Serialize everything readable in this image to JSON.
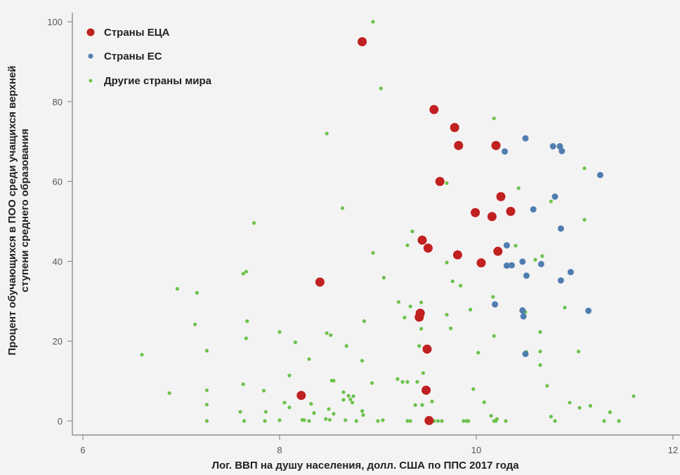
{
  "chart_data": {
    "type": "scatter",
    "title": "",
    "xlabel": "Лог. ВВП на душу населения, долл. США по ППС 2017 года",
    "ylabel_lines": [
      "Процент обучающихся в ПОО среди учащихся верхней",
      "ступени среднего образования"
    ],
    "xlim": [
      6,
      12
    ],
    "ylim": [
      0,
      100
    ],
    "x_ticks": [
      "6",
      "8",
      "10",
      "12"
    ],
    "y_ticks": [
      "0",
      "20",
      "40",
      "60",
      "80",
      "100"
    ],
    "grid": false,
    "legend_position": "top-left",
    "series": [
      {
        "name": "Страны ЕЦА",
        "color": "#c0201f",
        "points": [
          [
            8.84,
            95.0
          ],
          [
            9.57,
            78.0
          ],
          [
            9.78,
            73.5
          ],
          [
            9.82,
            69.0
          ],
          [
            10.2,
            69.0
          ],
          [
            9.63,
            60.0
          ],
          [
            10.25,
            56.2
          ],
          [
            9.99,
            52.2
          ],
          [
            10.16,
            51.2
          ],
          [
            10.35,
            52.5
          ],
          [
            9.45,
            45.3
          ],
          [
            9.51,
            43.3
          ],
          [
            9.81,
            41.6
          ],
          [
            10.22,
            42.5
          ],
          [
            10.05,
            39.6
          ],
          [
            8.41,
            34.8
          ],
          [
            9.43,
            27.0
          ],
          [
            9.42,
            26.0
          ],
          [
            9.5,
            18.0
          ],
          [
            8.22,
            6.4
          ],
          [
            9.49,
            7.7
          ],
          [
            9.52,
            0.1
          ]
        ]
      },
      {
        "name": "Страны ЕС",
        "color": "#4f7db0",
        "points": [
          [
            10.5,
            70.8
          ],
          [
            10.78,
            68.8
          ],
          [
            10.85,
            68.8
          ],
          [
            10.87,
            67.6
          ],
          [
            10.29,
            67.5
          ],
          [
            11.26,
            61.6
          ],
          [
            10.8,
            56.2
          ],
          [
            10.58,
            53.0
          ],
          [
            10.86,
            48.2
          ],
          [
            10.31,
            44.0
          ],
          [
            10.47,
            39.9
          ],
          [
            10.31,
            38.9
          ],
          [
            10.36,
            39.0
          ],
          [
            10.66,
            39.3
          ],
          [
            10.96,
            37.3
          ],
          [
            10.51,
            36.4
          ],
          [
            10.86,
            35.2
          ],
          [
            10.19,
            29.2
          ],
          [
            10.47,
            27.7
          ],
          [
            10.48,
            26.2
          ],
          [
            11.14,
            27.6
          ],
          [
            10.5,
            16.8
          ]
        ]
      },
      {
        "name": "Другие страны мира",
        "color": "#6cc24a",
        "points": [
          [
            8.95,
            100.0
          ],
          [
            9.03,
            83.3
          ],
          [
            10.18,
            75.8
          ],
          [
            8.48,
            72.0
          ],
          [
            11.1,
            63.3
          ],
          [
            9.7,
            59.6
          ],
          [
            10.43,
            58.3
          ],
          [
            8.64,
            53.3
          ],
          [
            10.76,
            55.0
          ],
          [
            11.1,
            50.4
          ],
          [
            7.74,
            49.6
          ],
          [
            9.35,
            47.5
          ],
          [
            10.4,
            43.9
          ],
          [
            8.95,
            42.1
          ],
          [
            9.3,
            44.0
          ],
          [
            10.6,
            40.4
          ],
          [
            10.67,
            41.3
          ],
          [
            9.06,
            35.9
          ],
          [
            9.7,
            39.7
          ],
          [
            9.76,
            35.0
          ],
          [
            9.84,
            33.9
          ],
          [
            7.66,
            37.4
          ],
          [
            7.63,
            36.9
          ],
          [
            6.96,
            33.1
          ],
          [
            7.16,
            32.1
          ],
          [
            10.66,
            39.3
          ],
          [
            9.33,
            28.7
          ],
          [
            9.44,
            29.7
          ],
          [
            9.21,
            29.8
          ],
          [
            9.94,
            27.9
          ],
          [
            9.7,
            26.6
          ],
          [
            10.5,
            27.3
          ],
          [
            10.17,
            31.1
          ],
          [
            10.9,
            28.4
          ],
          [
            7.67,
            25.0
          ],
          [
            7.14,
            24.2
          ],
          [
            8.86,
            25.0
          ],
          [
            9.27,
            25.9
          ],
          [
            9.44,
            23.1
          ],
          [
            9.74,
            23.2
          ],
          [
            10.65,
            22.3
          ],
          [
            8.0,
            22.3
          ],
          [
            8.48,
            22.0
          ],
          [
            8.52,
            21.5
          ],
          [
            10.18,
            21.3
          ],
          [
            7.66,
            20.7
          ],
          [
            8.16,
            19.7
          ],
          [
            8.68,
            18.8
          ],
          [
            9.42,
            18.8
          ],
          [
            7.26,
            17.6
          ],
          [
            6.6,
            16.6
          ],
          [
            10.02,
            17.1
          ],
          [
            10.51,
            17.3
          ],
          [
            10.65,
            17.4
          ],
          [
            11.04,
            17.4
          ],
          [
            8.3,
            15.5
          ],
          [
            8.84,
            15.1
          ],
          [
            10.65,
            14.0
          ],
          [
            8.1,
            11.4
          ],
          [
            9.46,
            12.0
          ],
          [
            9.2,
            10.5
          ],
          [
            9.25,
            9.8
          ],
          [
            9.3,
            9.8
          ],
          [
            9.4,
            9.8
          ],
          [
            8.94,
            9.5
          ],
          [
            8.53,
            10.1
          ],
          [
            8.55,
            10.1
          ],
          [
            7.63,
            9.2
          ],
          [
            10.72,
            8.8
          ],
          [
            9.97,
            8.0
          ],
          [
            6.88,
            7.0
          ],
          [
            7.26,
            7.7
          ],
          [
            7.84,
            7.6
          ],
          [
            8.75,
            6.2
          ],
          [
            8.65,
            7.2
          ],
          [
            8.7,
            6.3
          ],
          [
            8.32,
            4.3
          ],
          [
            8.05,
            4.6
          ],
          [
            8.1,
            3.4
          ],
          [
            8.5,
            3.0
          ],
          [
            8.65,
            5.3
          ],
          [
            8.72,
            5.4
          ],
          [
            8.74,
            4.6
          ],
          [
            10.08,
            4.7
          ],
          [
            9.38,
            4.0
          ],
          [
            9.45,
            4.0
          ],
          [
            9.55,
            4.9
          ],
          [
            10.95,
            4.6
          ],
          [
            11.05,
            3.3
          ],
          [
            11.16,
            3.8
          ],
          [
            11.6,
            6.2
          ],
          [
            7.26,
            4.1
          ],
          [
            7.86,
            2.3
          ],
          [
            7.6,
            2.3
          ],
          [
            8.35,
            2.0
          ],
          [
            8.55,
            1.8
          ],
          [
            8.85,
            1.5
          ],
          [
            8.84,
            2.5
          ],
          [
            10.15,
            1.3
          ],
          [
            10.21,
            0.5
          ],
          [
            10.76,
            1.1
          ],
          [
            11.36,
            2.2
          ],
          [
            7.26,
            0.0
          ],
          [
            7.64,
            0.0
          ],
          [
            7.85,
            0.0
          ],
          [
            8.0,
            0.2
          ],
          [
            8.23,
            0.3
          ],
          [
            8.25,
            0.2
          ],
          [
            8.3,
            0.0
          ],
          [
            8.47,
            0.5
          ],
          [
            8.51,
            0.3
          ],
          [
            8.67,
            0.2
          ],
          [
            8.78,
            0.0
          ],
          [
            9.0,
            0.0
          ],
          [
            9.05,
            0.2
          ],
          [
            9.3,
            0.0
          ],
          [
            9.33,
            0.0
          ],
          [
            9.57,
            0.0
          ],
          [
            9.61,
            0.0
          ],
          [
            9.65,
            0.0
          ],
          [
            9.87,
            0.0
          ],
          [
            9.9,
            0.0
          ],
          [
            9.92,
            0.0
          ],
          [
            10.18,
            0.0
          ],
          [
            10.2,
            0.0
          ],
          [
            10.3,
            0.0
          ],
          [
            10.8,
            0.0
          ],
          [
            11.3,
            0.0
          ],
          [
            11.45,
            0.0
          ]
        ]
      }
    ]
  }
}
